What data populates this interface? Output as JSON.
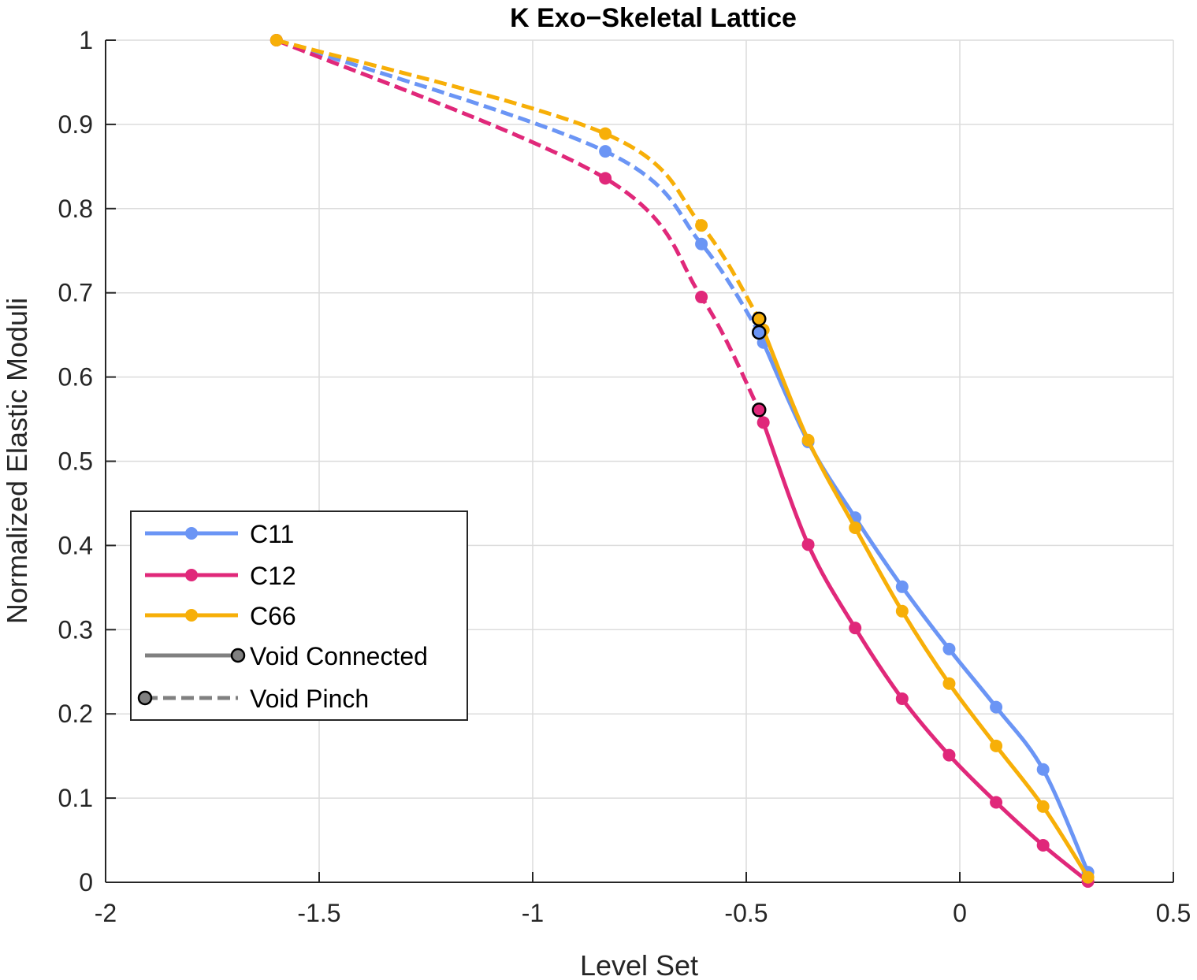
{
  "chart_data": {
    "type": "line",
    "title": "K Exo−Skeletal Lattice",
    "xlabel": "Level Set",
    "ylabel": "Normalized Elastic Moduli",
    "xlim": [
      -2,
      0.5
    ],
    "ylim": [
      0,
      1
    ],
    "x_ticks": [
      -2,
      -1.5,
      -1,
      -0.5,
      0,
      0.5
    ],
    "x_tick_labels": [
      "-2",
      "-1.5",
      "-1",
      "-0.5",
      "0",
      "0.5"
    ],
    "y_ticks": [
      0,
      0.1,
      0.2,
      0.3,
      0.4,
      0.5,
      0.6,
      0.7,
      0.8,
      0.9,
      1
    ],
    "y_tick_labels": [
      "0",
      "0.1",
      "0.2",
      "0.3",
      "0.4",
      "0.5",
      "0.6",
      "0.7",
      "0.8",
      "0.9",
      "1"
    ],
    "grid": true,
    "legend_position": "bottom-left",
    "series": [
      {
        "name": "C11",
        "color": "#6B95F5",
        "pinch": {
          "x": [
            -1.6,
            -0.83,
            -0.605,
            -0.47
          ],
          "y": [
            1.0,
            0.868,
            0.758,
            0.653
          ]
        },
        "connected": {
          "x": [
            -0.47,
            -0.46,
            -0.355,
            -0.245,
            -0.135,
            -0.025,
            0.085,
            0.195,
            0.3
          ],
          "y": [
            0.653,
            0.641,
            0.523,
            0.433,
            0.351,
            0.277,
            0.208,
            0.134,
            0.012
          ]
        }
      },
      {
        "name": "C12",
        "color": "#E0287A",
        "pinch": {
          "x": [
            -1.6,
            -0.83,
            -0.605,
            -0.47
          ],
          "y": [
            1.0,
            0.836,
            0.695,
            0.561
          ]
        },
        "connected": {
          "x": [
            -0.47,
            -0.46,
            -0.355,
            -0.245,
            -0.135,
            -0.025,
            0.085,
            0.195,
            0.3
          ],
          "y": [
            0.561,
            0.546,
            0.401,
            0.302,
            0.218,
            0.151,
            0.095,
            0.044,
            0.001
          ]
        }
      },
      {
        "name": "C66",
        "color": "#F7AF08",
        "pinch": {
          "x": [
            -1.6,
            -0.83,
            -0.605,
            -0.47
          ],
          "y": [
            1.0,
            0.889,
            0.78,
            0.669
          ]
        },
        "connected": {
          "x": [
            -0.47,
            -0.46,
            -0.355,
            -0.245,
            -0.135,
            -0.025,
            0.085,
            0.195,
            0.3
          ],
          "y": [
            0.669,
            0.656,
            0.525,
            0.421,
            0.322,
            0.236,
            0.162,
            0.09,
            0.006
          ]
        }
      }
    ],
    "markers_void_transition": [
      {
        "series": "C11",
        "x": -0.47,
        "y": 0.653
      },
      {
        "series": "C12",
        "x": -0.47,
        "y": 0.561
      },
      {
        "series": "C66",
        "x": -0.47,
        "y": 0.669
      }
    ],
    "legend": [
      {
        "label": "C11",
        "style": "solid",
        "color": "#6B95F5",
        "marker": "dot-center"
      },
      {
        "label": "C12",
        "style": "solid",
        "color": "#E0287A",
        "marker": "dot-center"
      },
      {
        "label": "C66",
        "style": "solid",
        "color": "#F7AF08",
        "marker": "dot-center"
      },
      {
        "label": "Void Connected",
        "style": "solid",
        "color": "#808080",
        "marker": "circle-end"
      },
      {
        "label": "Void Pinch",
        "style": "dashed",
        "color": "#808080",
        "marker": "circle-start"
      }
    ]
  }
}
